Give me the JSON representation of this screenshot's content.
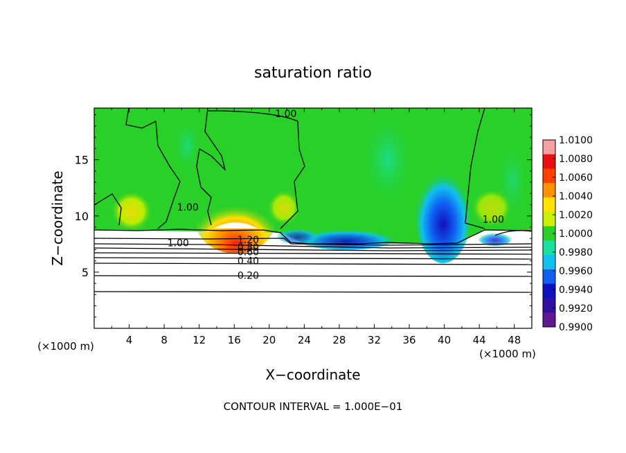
{
  "chart_data": {
    "type": "heatmap",
    "title": "saturation ratio",
    "xlabel": "X−coordinate",
    "ylabel": "Z−coordinate",
    "x_unit_left": "(×1000 m)",
    "x_unit_right": "(×1000 m)",
    "footer": "CONTOUR INTERVAL = 1.000E−01",
    "xlim": [
      0,
      50
    ],
    "ylim": [
      0,
      19.6
    ],
    "x_ticks": [
      4,
      8,
      12,
      16,
      20,
      24,
      28,
      32,
      36,
      40,
      44,
      48
    ],
    "y_ticks": [
      5,
      10,
      15
    ],
    "colorbar": {
      "min": 0.99,
      "max": 1.01,
      "labels": [
        "1.0100",
        "1.0080",
        "1.0060",
        "1.0040",
        "1.0020",
        "1.0000",
        "0.9980",
        "0.9960",
        "0.9940",
        "0.9920",
        "0.9900"
      ],
      "colors": [
        "#f4a0a0",
        "#e81010",
        "#ff4000",
        "#ff9000",
        "#ffe000",
        "#c8f000",
        "#28d028",
        "#18e0a0",
        "#10c0f0",
        "#1060f0",
        "#1010c0",
        "#3010a0",
        "#601890"
      ]
    },
    "contour_labels": [
      {
        "text": "1.00",
        "x": 21.9,
        "y": 19.1
      },
      {
        "text": "1.00",
        "x": 10.7,
        "y": 10.8
      },
      {
        "text": "1.00",
        "x": 45.6,
        "y": 9.7
      },
      {
        "text": "1.00",
        "x": 9.6,
        "y": 7.6
      },
      {
        "text": "1.20",
        "x": 17.6,
        "y": 7.9
      },
      {
        "text": "0.80",
        "x": 17.6,
        "y": 7.2
      },
      {
        "text": "0.60",
        "x": 17.6,
        "y": 6.8
      },
      {
        "text": "0.40",
        "x": 17.6,
        "y": 6.0
      },
      {
        "text": "0.20",
        "x": 17.6,
        "y": 4.7
      }
    ]
  }
}
